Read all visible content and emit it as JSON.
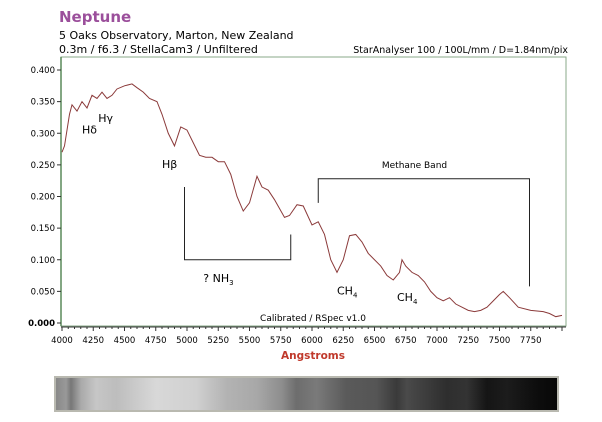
{
  "header": {
    "title": "Neptune",
    "subtitle1": "5 Oaks Observatory, Marton, New Zealand",
    "subtitle2": "0.3m / f6.3 / StellaCam3 / Unfiltered",
    "instrument": "StarAnalyser 100 / 100L/mm / D=1.84nm/pix"
  },
  "chart_data": {
    "type": "line",
    "title": "Neptune",
    "xlabel": "Angstroms",
    "ylabel": "",
    "xlim": [
      4000,
      8000
    ],
    "ylim": [
      0,
      0.4
    ],
    "xticks": [
      "4000",
      "4250",
      "4500",
      "4750",
      "5000",
      "5250",
      "5500",
      "5750",
      "6000",
      "6250",
      "6500",
      "6750",
      "7000",
      "7250",
      "7500",
      "7750"
    ],
    "yticks": [
      "0.000",
      "0.050",
      "0.100",
      "0.150",
      "0.200",
      "0.250",
      "0.300",
      "0.350",
      "0.400"
    ],
    "footer": "Calibrated / RSpec v1.0",
    "line_color": "#8b3a3a",
    "axis_color": "#5a8a5a",
    "xlabel_color": "#c0392b",
    "series": [
      {
        "name": "Neptune spectrum",
        "x": [
          4000,
          4020,
          4060,
          4080,
          4120,
          4160,
          4200,
          4240,
          4280,
          4320,
          4360,
          4400,
          4440,
          4500,
          4560,
          4600,
          4650,
          4700,
          4760,
          4800,
          4850,
          4900,
          4950,
          5000,
          5050,
          5100,
          5150,
          5200,
          5250,
          5300,
          5350,
          5400,
          5450,
          5500,
          5560,
          5600,
          5650,
          5700,
          5780,
          5820,
          5880,
          5930,
          6000,
          6050,
          6100,
          6150,
          6200,
          6250,
          6300,
          6350,
          6400,
          6450,
          6500,
          6550,
          6600,
          6650,
          6700,
          6720,
          6750,
          6800,
          6850,
          6900,
          6950,
          7000,
          7050,
          7100,
          7150,
          7200,
          7250,
          7300,
          7350,
          7400,
          7450,
          7500,
          7530,
          7580,
          7650,
          7750,
          7850,
          7900,
          7950,
          8000
        ],
        "y": [
          0.27,
          0.28,
          0.33,
          0.345,
          0.335,
          0.35,
          0.34,
          0.36,
          0.355,
          0.365,
          0.355,
          0.36,
          0.37,
          0.375,
          0.378,
          0.372,
          0.365,
          0.355,
          0.35,
          0.33,
          0.3,
          0.28,
          0.31,
          0.305,
          0.285,
          0.265,
          0.262,
          0.262,
          0.255,
          0.255,
          0.235,
          0.2,
          0.177,
          0.19,
          0.232,
          0.215,
          0.21,
          0.195,
          0.167,
          0.17,
          0.187,
          0.185,
          0.155,
          0.16,
          0.14,
          0.1,
          0.08,
          0.1,
          0.138,
          0.14,
          0.128,
          0.11,
          0.1,
          0.09,
          0.075,
          0.068,
          0.08,
          0.1,
          0.09,
          0.08,
          0.075,
          0.065,
          0.05,
          0.04,
          0.035,
          0.04,
          0.03,
          0.025,
          0.02,
          0.018,
          0.02,
          0.025,
          0.035,
          0.045,
          0.05,
          0.04,
          0.025,
          0.02,
          0.018,
          0.015,
          0.01,
          0.012
        ]
      }
    ],
    "annotations": [
      {
        "text": "Hδ",
        "x": 4160,
        "y": 0.3
      },
      {
        "text": "Hγ",
        "x": 4290,
        "y": 0.318
      },
      {
        "text": "Hβ",
        "x": 4800,
        "y": 0.245
      },
      {
        "text": "? NH3",
        "base": "? NH",
        "sub": "3",
        "x": 5130,
        "y": 0.065,
        "bracket": {
          "x1": 4980,
          "x2": 5830,
          "y_left": 0.215,
          "y_right": 0.14,
          "y_bottom": 0.1
        }
      },
      {
        "text": "Methane Band",
        "x": 6820,
        "y": 0.245,
        "bracket": {
          "x1": 6050,
          "x2": 7740,
          "y_top": 0.228,
          "y_left": 0.19,
          "y_right": 0.058
        }
      },
      {
        "text": "CH4",
        "base": "CH",
        "sub": "4",
        "x": 6200,
        "y": 0.045
      },
      {
        "text": "CH4",
        "base": "CH",
        "sub": "4",
        "x": 6680,
        "y": 0.035
      }
    ]
  }
}
